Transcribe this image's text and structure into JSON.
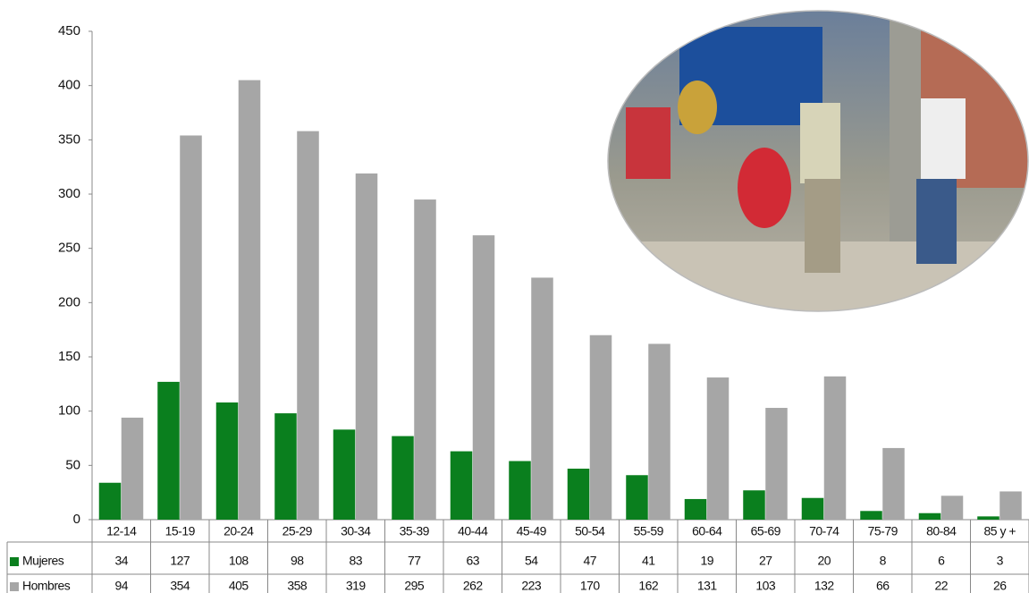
{
  "chart_data": {
    "type": "bar",
    "categories": [
      "12-14",
      "15-19",
      "20-24",
      "25-29",
      "30-34",
      "35-39",
      "40-44",
      "45-49",
      "50-54",
      "55-59",
      "60-64",
      "65-69",
      "70-74",
      "75-79",
      "80-84",
      "85 y +"
    ],
    "series": [
      {
        "name": "Mujeres",
        "color": "#0a7f1e",
        "values": [
          34,
          127,
          108,
          98,
          83,
          77,
          63,
          54,
          47,
          41,
          19,
          27,
          20,
          8,
          6,
          3
        ]
      },
      {
        "name": "Hombres",
        "color": "#a6a6a6",
        "values": [
          94,
          354,
          405,
          358,
          319,
          295,
          262,
          223,
          170,
          162,
          131,
          103,
          132,
          66,
          22,
          26
        ]
      }
    ],
    "ylim": [
      0,
      450
    ],
    "yticks": [
      0,
      50,
      100,
      150,
      200,
      250,
      300,
      350,
      400,
      450
    ],
    "grid": false
  }
}
